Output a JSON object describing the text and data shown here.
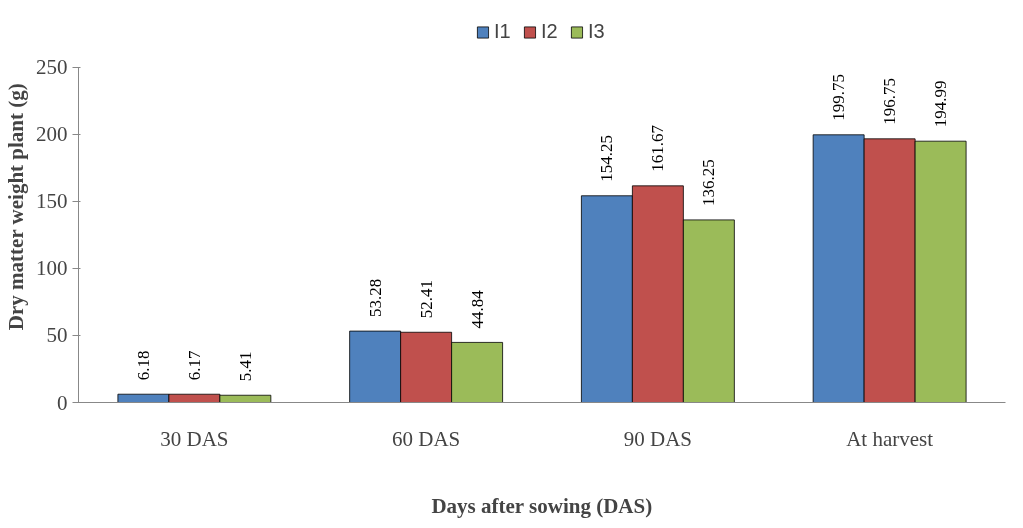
{
  "chart_data": {
    "type": "bar",
    "xlabel": "Days after sowing (DAS)",
    "ylabel": "Dry matter weight plant (g)",
    "categories": [
      "30 DAS",
      "60 DAS",
      "90 DAS",
      "At harvest"
    ],
    "series": [
      {
        "name": "I1",
        "color": "#4f81bd",
        "values": [
          6.18,
          53.28,
          154.25,
          199.75
        ]
      },
      {
        "name": "I2",
        "color": "#c0504d",
        "values": [
          6.17,
          52.41,
          161.67,
          196.75
        ]
      },
      {
        "name": "I3",
        "color": "#9bbb59",
        "values": [
          5.41,
          44.84,
          136.25,
          194.99
        ]
      }
    ],
    "ylim": [
      0,
      250
    ],
    "yticks": [
      0,
      50,
      100,
      150,
      200,
      250
    ],
    "grid": false,
    "legend": "top",
    "data_labels": true
  }
}
